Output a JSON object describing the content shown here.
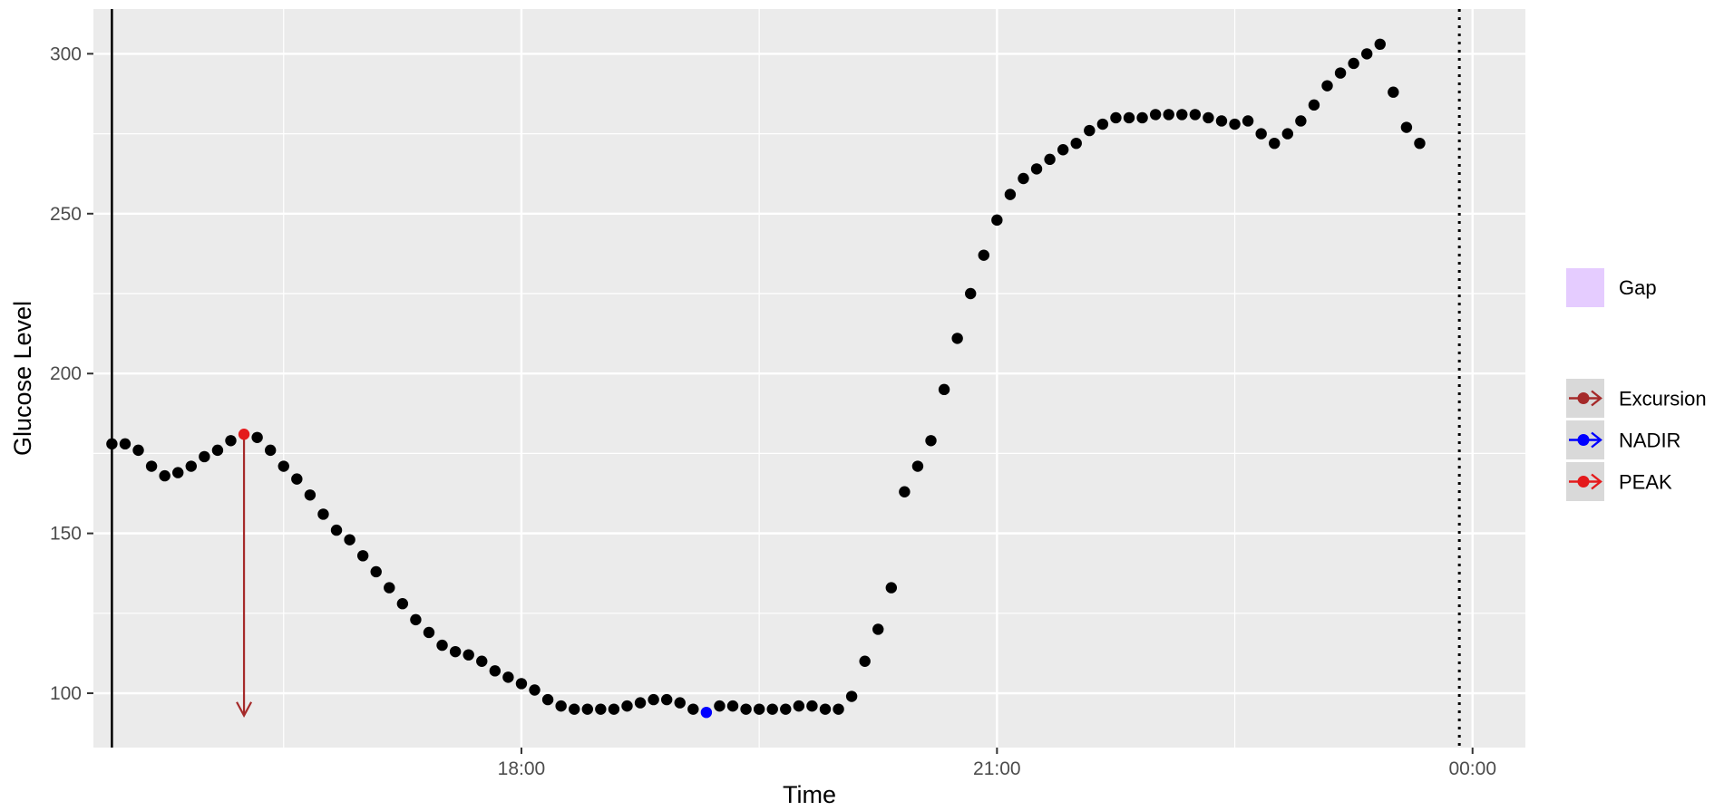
{
  "chart_data": {
    "type": "scatter",
    "title": "",
    "xlabel": "Time",
    "ylabel": "Glucose Level",
    "xlim": [
      "15:18",
      "00:20"
    ],
    "ylim": [
      83,
      314
    ],
    "x_ticks": [
      "18:00",
      "21:00",
      "00:00"
    ],
    "y_ticks": [
      100,
      150,
      200,
      250,
      300
    ],
    "grid": true,
    "legend_position": "right",
    "start_marker_time": "15:25",
    "end_marker_time": "23:55",
    "series": [
      {
        "values": [
          [
            "15:25",
            178
          ],
          [
            "15:30",
            178
          ],
          [
            "15:35",
            176
          ],
          [
            "15:40",
            171
          ],
          [
            "15:45",
            168
          ],
          [
            "15:50",
            169
          ],
          [
            "15:55",
            171
          ],
          [
            "16:00",
            174
          ],
          [
            "16:05",
            176
          ],
          [
            "16:10",
            179
          ],
          [
            "16:20",
            180
          ],
          [
            "16:25",
            176
          ],
          [
            "16:30",
            171
          ],
          [
            "16:35",
            167
          ],
          [
            "16:40",
            162
          ],
          [
            "16:45",
            156
          ],
          [
            "16:50",
            151
          ],
          [
            "16:55",
            148
          ],
          [
            "17:00",
            143
          ],
          [
            "17:05",
            138
          ],
          [
            "17:10",
            133
          ],
          [
            "17:15",
            128
          ],
          [
            "17:20",
            123
          ],
          [
            "17:25",
            119
          ],
          [
            "17:30",
            115
          ],
          [
            "17:35",
            113
          ],
          [
            "17:40",
            112
          ],
          [
            "17:45",
            110
          ],
          [
            "17:50",
            107
          ],
          [
            "17:55",
            105
          ],
          [
            "18:00",
            103
          ],
          [
            "18:05",
            101
          ],
          [
            "18:10",
            98
          ],
          [
            "18:15",
            96
          ],
          [
            "18:20",
            95
          ],
          [
            "18:25",
            95
          ],
          [
            "18:30",
            95
          ],
          [
            "18:35",
            95
          ],
          [
            "18:40",
            96
          ],
          [
            "18:45",
            97
          ],
          [
            "18:50",
            98
          ],
          [
            "18:55",
            98
          ],
          [
            "19:00",
            97
          ],
          [
            "19:05",
            95
          ],
          [
            "19:15",
            96
          ],
          [
            "19:20",
            96
          ],
          [
            "19:25",
            95
          ],
          [
            "19:30",
            95
          ],
          [
            "19:35",
            95
          ],
          [
            "19:40",
            95
          ],
          [
            "19:45",
            96
          ],
          [
            "19:50",
            96
          ],
          [
            "19:55",
            95
          ],
          [
            "20:00",
            95
          ],
          [
            "20:05",
            99
          ],
          [
            "20:10",
            110
          ],
          [
            "20:15",
            120
          ],
          [
            "20:20",
            133
          ],
          [
            "20:25",
            163
          ],
          [
            "20:30",
            171
          ],
          [
            "20:35",
            179
          ],
          [
            "20:40",
            195
          ],
          [
            "20:45",
            211
          ],
          [
            "20:50",
            225
          ],
          [
            "20:55",
            237
          ],
          [
            "21:00",
            248
          ],
          [
            "21:05",
            256
          ],
          [
            "21:10",
            261
          ],
          [
            "21:15",
            264
          ],
          [
            "21:20",
            267
          ],
          [
            "21:25",
            270
          ],
          [
            "21:30",
            272
          ],
          [
            "21:35",
            276
          ],
          [
            "21:40",
            278
          ],
          [
            "21:45",
            280
          ],
          [
            "21:50",
            280
          ],
          [
            "21:55",
            280
          ],
          [
            "22:00",
            281
          ],
          [
            "22:05",
            281
          ],
          [
            "22:10",
            281
          ],
          [
            "22:15",
            281
          ],
          [
            "22:20",
            280
          ],
          [
            "22:25",
            279
          ],
          [
            "22:30",
            278
          ],
          [
            "22:35",
            279
          ],
          [
            "22:40",
            275
          ],
          [
            "22:45",
            272
          ],
          [
            "22:50",
            275
          ],
          [
            "22:55",
            279
          ],
          [
            "23:00",
            284
          ],
          [
            "23:05",
            290
          ],
          [
            "23:10",
            294
          ],
          [
            "23:15",
            297
          ],
          [
            "23:20",
            300
          ],
          [
            "23:25",
            303
          ],
          [
            "23:30",
            288
          ],
          [
            "23:35",
            277
          ],
          [
            "23:40",
            272
          ]
        ],
        "color": "#000000"
      },
      {
        "name": "PEAK",
        "values": [
          [
            "16:15",
            181
          ]
        ],
        "color": "#e41a1c"
      },
      {
        "name": "NADIR",
        "values": [
          [
            "19:10",
            94
          ]
        ],
        "color": "#0000ff"
      }
    ],
    "excursion_arrow": {
      "time": "16:15",
      "from": 181,
      "to": 93,
      "color": "#a52a2a"
    },
    "legend": {
      "fill_entries": [
        {
          "label": "Gap",
          "color": "#e5ccff"
        }
      ],
      "line_entries": [
        {
          "label": "Excursion",
          "color": "#a52a2a"
        },
        {
          "label": "NADIR",
          "color": "#0000ff"
        },
        {
          "label": "PEAK",
          "color": "#e41a1c"
        }
      ]
    },
    "colors": {
      "panel_bg": "#ebebeb",
      "grid": "#ffffff",
      "legend_key_bg": "#d9d9d9"
    }
  }
}
